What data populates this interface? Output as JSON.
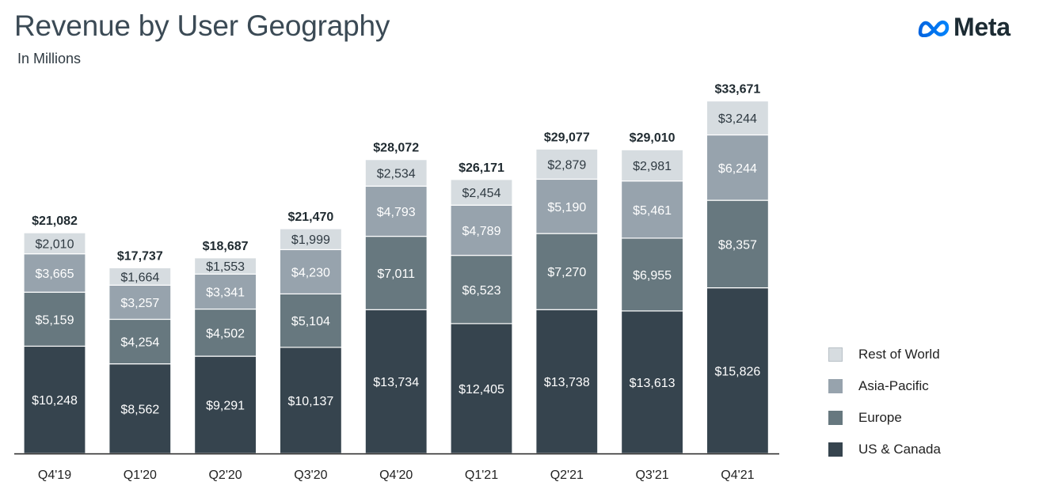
{
  "header": {
    "title": "Revenue by User Geography",
    "subtitle": "In Millions"
  },
  "logo": {
    "text": "Meta"
  },
  "legend": {
    "items": [
      {
        "label": "Rest of World",
        "color": "#d6dce0"
      },
      {
        "label": "Asia-Pacific",
        "color": "#97a3ad"
      },
      {
        "label": "Europe",
        "color": "#67787f"
      },
      {
        "label": "US & Canada",
        "color": "#36444e"
      }
    ]
  },
  "chart_data": {
    "type": "bar",
    "stacked": true,
    "categories": [
      "Q4'19",
      "Q1'20",
      "Q2'20",
      "Q3'20",
      "Q4'20",
      "Q1'21",
      "Q2'21",
      "Q3'21",
      "Q4'21"
    ],
    "series": [
      {
        "name": "US & Canada",
        "color": "#36444e",
        "values": [
          10248,
          8562,
          9291,
          10137,
          13734,
          12405,
          13738,
          13613,
          15826
        ],
        "labels": [
          "$10,248",
          "$8,562",
          "$9,291",
          "$10,137",
          "$13,734",
          "$12,405",
          "$13,738",
          "$13,613",
          "$15,826"
        ]
      },
      {
        "name": "Europe",
        "color": "#67787f",
        "values": [
          5159,
          4254,
          4502,
          5104,
          7011,
          6523,
          7270,
          6955,
          8357
        ],
        "labels": [
          "$5,159",
          "$4,254",
          "$4,502",
          "$5,104",
          "$7,011",
          "$6,523",
          "$7,270",
          "$6,955",
          "$8,357"
        ]
      },
      {
        "name": "Asia-Pacific",
        "color": "#97a3ad",
        "values": [
          3665,
          3257,
          3341,
          4230,
          4793,
          4789,
          5190,
          5461,
          6244
        ],
        "labels": [
          "$3,665",
          "$3,257",
          "$3,341",
          "$4,230",
          "$4,793",
          "$4,789",
          "$5,190",
          "$5,461",
          "$6,244"
        ]
      },
      {
        "name": "Rest of World",
        "color": "#d6dce0",
        "values": [
          2010,
          1664,
          1553,
          1999,
          2534,
          2454,
          2879,
          2981,
          3244
        ],
        "labels": [
          "$2,010",
          "$1,664",
          "$1,553",
          "$1,999",
          "$2,534",
          "$2,454",
          "$2,879",
          "$2,981",
          "$3,244"
        ]
      }
    ],
    "totals": [
      21082,
      17737,
      18687,
      21470,
      28072,
      26171,
      29077,
      29010,
      33671
    ],
    "total_labels": [
      "$21,082",
      "$17,737",
      "$18,687",
      "$21,470",
      "$28,072",
      "$26,171",
      "$29,077",
      "$29,010",
      "$33,671"
    ],
    "ylim": [
      0,
      35000
    ],
    "grid": false,
    "legend_position": "right"
  }
}
